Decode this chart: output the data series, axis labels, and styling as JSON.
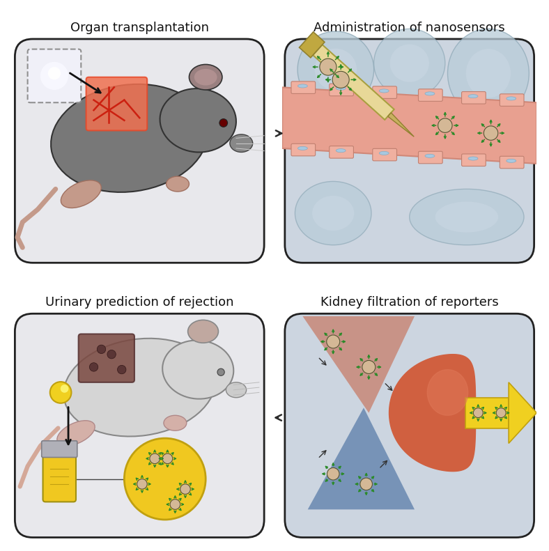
{
  "title_tl": "Organ transplantation",
  "title_tr": "Administration of nanosensors",
  "title_bl": "Urinary prediction of rejection",
  "title_br": "Kidney filtration of reporters",
  "bg": "#ffffff",
  "panel_gray": "#e8e8ec",
  "panel_blue": "#ccd5e0",
  "mouse_dark": "#787878",
  "mouse_skin": "#c49a8a",
  "organ_red": "#e84828",
  "organ_red2": "#f07050",
  "organ_reject": "#7a4840",
  "nano_core": "#d4b896",
  "nano_spike": "#2a8a28",
  "syringe_fill": "#e8d898",
  "vessel_fill": "#e8a090",
  "vessel_edge": "#d08878",
  "cell_bg": "#b8ccd8",
  "cell_inner": "#ccd8e4",
  "kidney_fill": "#d06040",
  "tri_red": "#c88878",
  "tri_blue": "#6888b0",
  "yellow_fill": "#f0d020",
  "yellow_edge": "#c0a010",
  "urine_fill": "#f0c820",
  "title_fs": 13,
  "arrow_color": "#2a2a2a"
}
